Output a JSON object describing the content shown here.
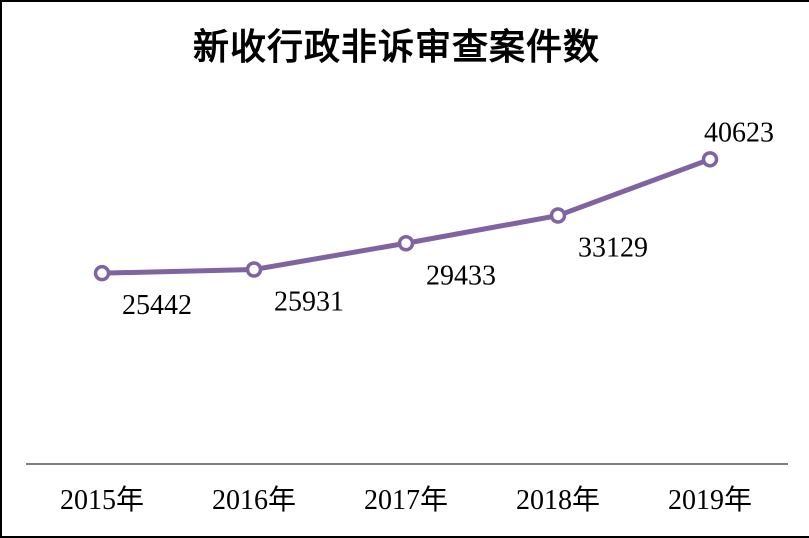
{
  "page": {
    "background": "#FFFFFF",
    "frame_border_color": "#000000"
  },
  "chart_data": {
    "type": "line",
    "title": "新收行政非诉审查案件数",
    "categories": [
      "2015年",
      "2016年",
      "2017年",
      "2018年",
      "2019年"
    ],
    "series": [
      {
        "name": "新收行政非诉审查案件数",
        "values": [
          25442,
          25931,
          29433,
          33129,
          40623
        ]
      }
    ],
    "data_labels": [
      "25442",
      "25931",
      "29433",
      "33129",
      "40623"
    ],
    "data_label_positions": [
      "below",
      "below",
      "below",
      "below",
      "above"
    ],
    "xlabel": "",
    "ylabel": "",
    "ylim": [
      0,
      45000
    ],
    "grid": false,
    "legend_position": "none",
    "line_color": "#8064A2",
    "marker_fill": "#FFFFFF",
    "marker_stroke": "#8064A2",
    "axis_line_color": "#808080",
    "text_color": "#000000"
  }
}
